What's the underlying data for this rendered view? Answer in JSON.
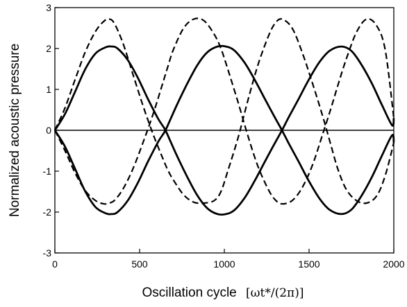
{
  "chart_data": {
    "type": "line",
    "xlabel": "Oscillation cycle",
    "xlabel_math": "[ωt*/(2π)]",
    "ylabel": "Normalized acoustic pressure",
    "xlim": [
      0,
      2000
    ],
    "ylim": [
      -3,
      3
    ],
    "x_ticks": [
      "0",
      "500",
      "1000",
      "1500",
      "2000"
    ],
    "y_ticks": [
      "3",
      "2",
      "1",
      "0",
      "-1",
      "-2",
      "-3"
    ],
    "grid": false,
    "legend": "none",
    "zero_line": true,
    "series": [
      {
        "style": "solid",
        "x": [
          0,
          60,
          120,
          180,
          240,
          300,
          335,
          370,
          430,
          490,
          550,
          610,
          650,
          680,
          720,
          780,
          840,
          900,
          960,
          1010,
          1060,
          1120,
          1180,
          1240,
          1300,
          1340,
          1380,
          1440,
          1500,
          1560,
          1620,
          1690,
          1750,
          1810,
          1870,
          1930,
          1990,
          2000
        ],
        "y": [
          0,
          0.4,
          0.95,
          1.5,
          1.88,
          2.03,
          2.05,
          2.0,
          1.72,
          1.28,
          0.76,
          0.28,
          0.02,
          -0.25,
          -0.62,
          -1.13,
          -1.59,
          -1.91,
          -2.05,
          -2.05,
          -1.95,
          -1.65,
          -1.23,
          -0.76,
          -0.3,
          0.0,
          0.32,
          0.78,
          1.25,
          1.66,
          1.94,
          2.05,
          1.94,
          1.6,
          1.15,
          0.62,
          0.12,
          0.3
        ]
      },
      {
        "style": "solid",
        "x": [
          0,
          60,
          120,
          180,
          240,
          300,
          335,
          370,
          430,
          490,
          550,
          610,
          650,
          680,
          720,
          780,
          840,
          900,
          960,
          1010,
          1060,
          1120,
          1180,
          1240,
          1300,
          1340,
          1380,
          1440,
          1500,
          1560,
          1620,
          1690,
          1750,
          1810,
          1870,
          1930,
          1990,
          2000
        ],
        "y": [
          0,
          -0.4,
          -0.95,
          -1.5,
          -1.88,
          -2.03,
          -2.05,
          -2.0,
          -1.72,
          -1.28,
          -0.76,
          -0.28,
          -0.02,
          0.25,
          0.62,
          1.13,
          1.59,
          1.91,
          2.05,
          2.05,
          1.95,
          1.65,
          1.23,
          0.76,
          0.3,
          0.0,
          -0.32,
          -0.78,
          -1.25,
          -1.66,
          -1.94,
          -2.05,
          -1.94,
          -1.6,
          -1.15,
          -0.62,
          -0.12,
          -0.3
        ]
      },
      {
        "style": "dashed",
        "x": [
          0,
          60,
          120,
          180,
          240,
          290,
          320,
          350,
          400,
          460,
          520,
          580,
          640,
          670,
          700,
          760,
          820,
          880,
          940,
          980,
          1020,
          1080,
          1140,
          1200,
          1260,
          1300,
          1340,
          1400,
          1460,
          1520,
          1580,
          1630,
          1670,
          1720,
          1780,
          1840,
          1900,
          1950,
          2000
        ],
        "y": [
          0,
          0.55,
          1.25,
          1.92,
          2.42,
          2.67,
          2.72,
          2.62,
          2.15,
          1.38,
          0.6,
          -0.1,
          -0.72,
          -1.0,
          -1.22,
          -1.58,
          -1.76,
          -1.78,
          -1.72,
          -1.5,
          -1.0,
          -0.2,
          0.75,
          1.62,
          2.3,
          2.62,
          2.72,
          2.5,
          1.9,
          1.15,
          0.35,
          -0.38,
          -0.95,
          -1.45,
          -1.72,
          -1.78,
          -1.6,
          -1.1,
          -0.3
        ]
      },
      {
        "style": "dashed",
        "x": [
          0,
          60,
          120,
          180,
          240,
          290,
          320,
          350,
          400,
          460,
          520,
          580,
          640,
          670,
          700,
          760,
          820,
          880,
          940,
          980,
          1020,
          1080,
          1140,
          1200,
          1260,
          1300,
          1340,
          1400,
          1460,
          1520,
          1580,
          1630,
          1670,
          1720,
          1780,
          1840,
          1900,
          1950,
          2000
        ],
        "y": [
          0,
          -0.5,
          -1.05,
          -1.48,
          -1.72,
          -1.8,
          -1.78,
          -1.72,
          -1.45,
          -0.95,
          -0.3,
          0.4,
          1.2,
          1.6,
          1.98,
          2.5,
          2.72,
          2.68,
          2.35,
          2.0,
          1.5,
          0.7,
          -0.15,
          -0.9,
          -1.45,
          -1.7,
          -1.8,
          -1.72,
          -1.4,
          -0.85,
          -0.1,
          0.55,
          1.1,
          1.75,
          2.4,
          2.72,
          2.55,
          1.95,
          0.3
        ]
      }
    ]
  }
}
